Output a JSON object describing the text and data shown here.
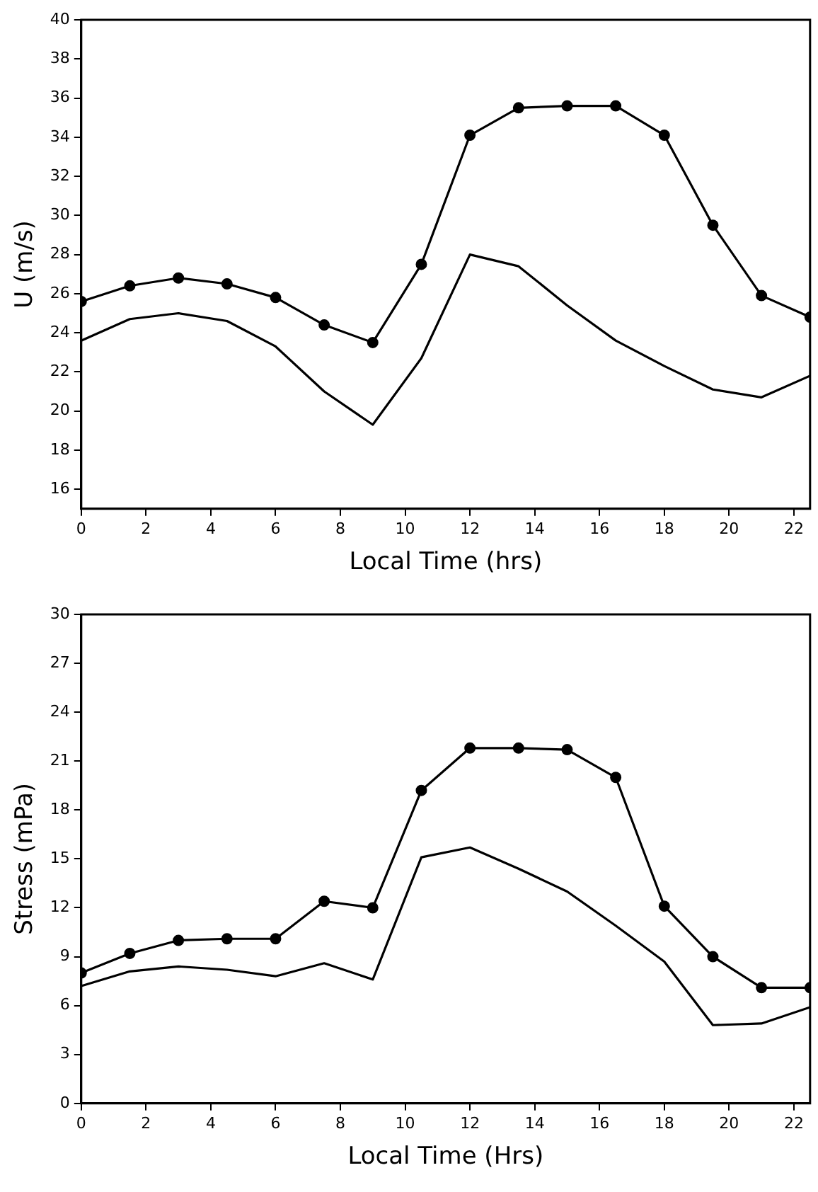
{
  "chart_data": [
    {
      "type": "line",
      "xlabel": "Local Time (hrs)",
      "ylabel": "U (m/s)",
      "x": [
        0,
        1.5,
        3,
        4.5,
        6,
        7.5,
        9,
        10.5,
        12,
        13.5,
        15,
        16.5,
        18,
        19.5,
        21,
        22.5
      ],
      "series": [
        {
          "color": "#000000",
          "marker": "circle",
          "values": [
            25.6,
            26.4,
            26.8,
            26.5,
            25.8,
            24.4,
            23.5,
            27.5,
            34.1,
            35.5,
            35.6,
            35.6,
            34.1,
            29.5,
            25.9,
            24.8
          ]
        },
        {
          "color": "#000000",
          "marker": "none",
          "values": [
            23.6,
            24.7,
            25.0,
            24.6,
            23.3,
            21.0,
            19.3,
            22.7,
            28.0,
            27.4,
            25.4,
            23.6,
            22.3,
            21.1,
            20.7,
            21.8
          ]
        }
      ],
      "xlim": [
        0,
        22.5
      ],
      "xticks": [
        0,
        2,
        4,
        6,
        8,
        10,
        12,
        14,
        16,
        18,
        20,
        22
      ],
      "ylim": [
        15,
        40
      ],
      "yticks": [
        16,
        18,
        20,
        22,
        24,
        26,
        28,
        30,
        32,
        34,
        36,
        38,
        40
      ],
      "grid": false,
      "legend": false,
      "line_style": "solid"
    },
    {
      "type": "line",
      "xlabel": "Local Time (Hrs)",
      "ylabel": "Stress (mPa)",
      "x": [
        0,
        1.5,
        3,
        4.5,
        6,
        7.5,
        9,
        10.5,
        12,
        13.5,
        15,
        16.5,
        18,
        19.5,
        21,
        22.5
      ],
      "series": [
        {
          "color": "#000000",
          "marker": "circle",
          "values": [
            8.0,
            9.2,
            10.0,
            10.1,
            10.1,
            12.4,
            12.0,
            19.2,
            21.8,
            21.8,
            21.7,
            20.0,
            12.1,
            9.0,
            7.1,
            7.1
          ]
        },
        {
          "color": "#000000",
          "marker": "none",
          "values": [
            7.2,
            8.1,
            8.4,
            8.2,
            7.8,
            8.6,
            7.6,
            15.1,
            15.7,
            14.4,
            13.0,
            10.9,
            8.7,
            4.8,
            4.9,
            5.9
          ]
        }
      ],
      "xlim": [
        0,
        22.5
      ],
      "xticks": [
        0,
        2,
        4,
        6,
        8,
        10,
        12,
        14,
        16,
        18,
        20,
        22
      ],
      "ylim": [
        0,
        30
      ],
      "yticks": [
        0,
        3,
        6,
        9,
        12,
        15,
        18,
        21,
        24,
        27,
        30
      ],
      "grid": false,
      "legend": false,
      "line_style": "solid"
    }
  ]
}
